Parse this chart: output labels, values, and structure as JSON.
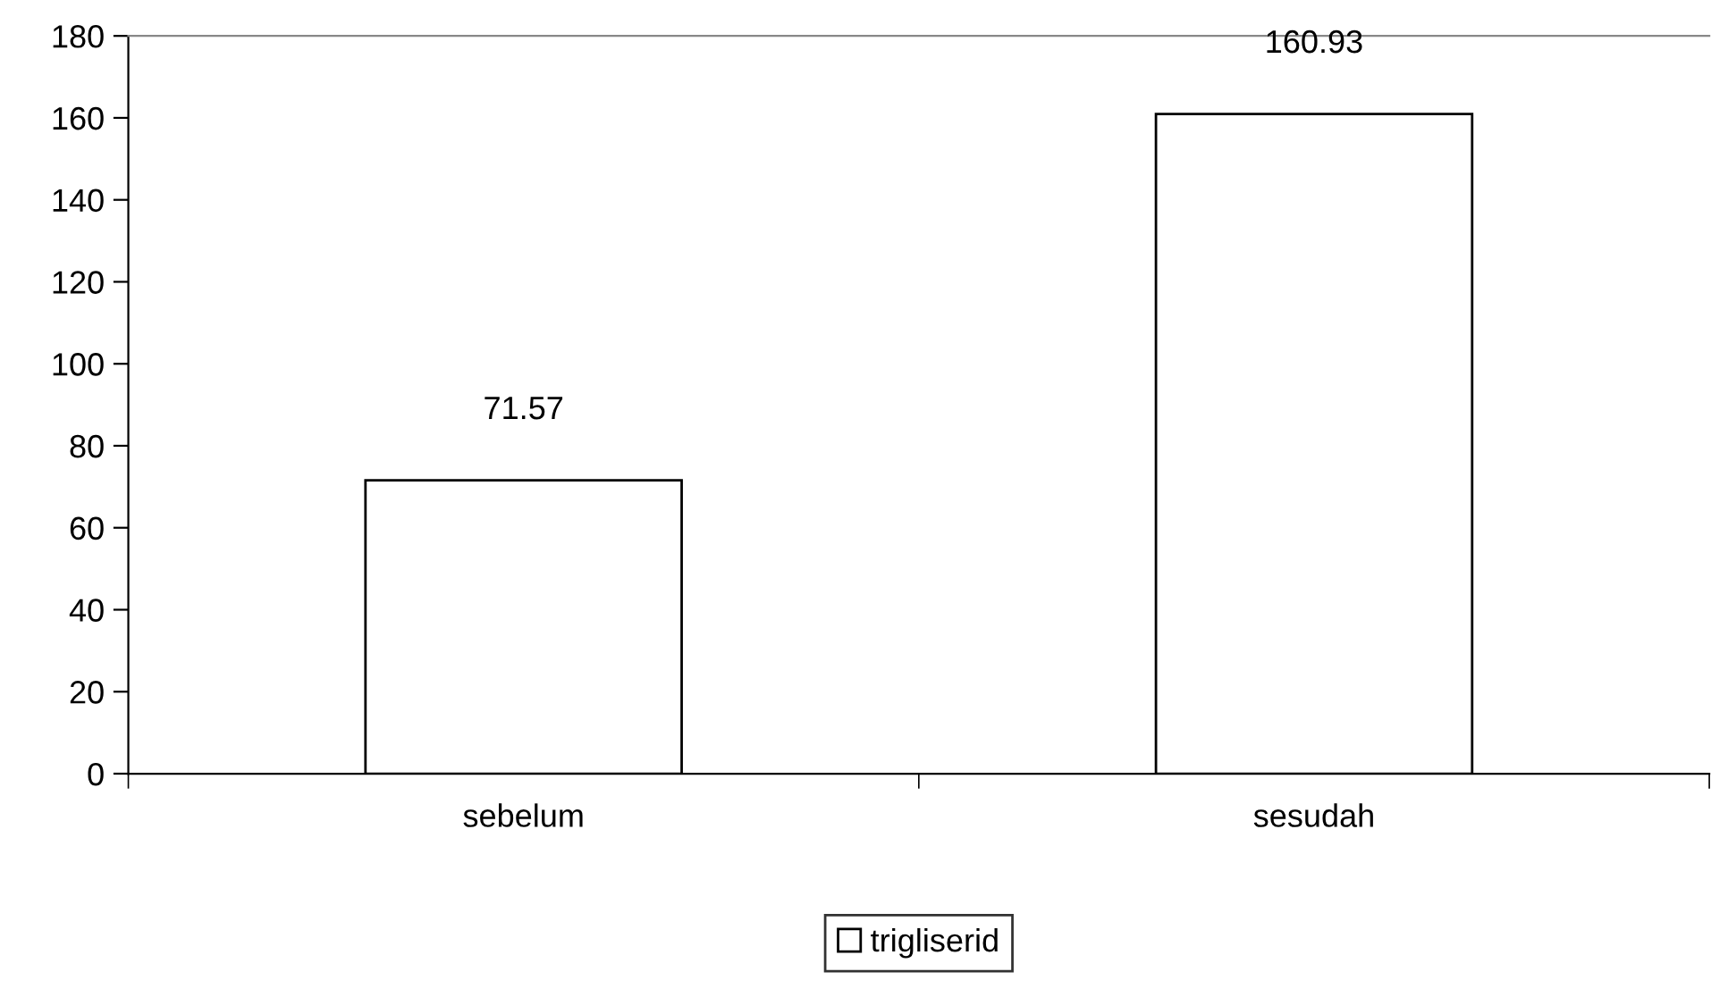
{
  "chart_data": {
    "type": "bar",
    "categories": [
      "sebelum",
      "sesudah"
    ],
    "series": [
      {
        "name": "trigliserid",
        "color": "#ffffff",
        "values": [
          71.57,
          160.93
        ]
      }
    ],
    "ylim": [
      0,
      180
    ],
    "yticks": [
      0,
      20,
      40,
      60,
      80,
      100,
      120,
      140,
      160,
      180
    ],
    "data_labels": true,
    "grid": false,
    "legend": "bottom"
  }
}
